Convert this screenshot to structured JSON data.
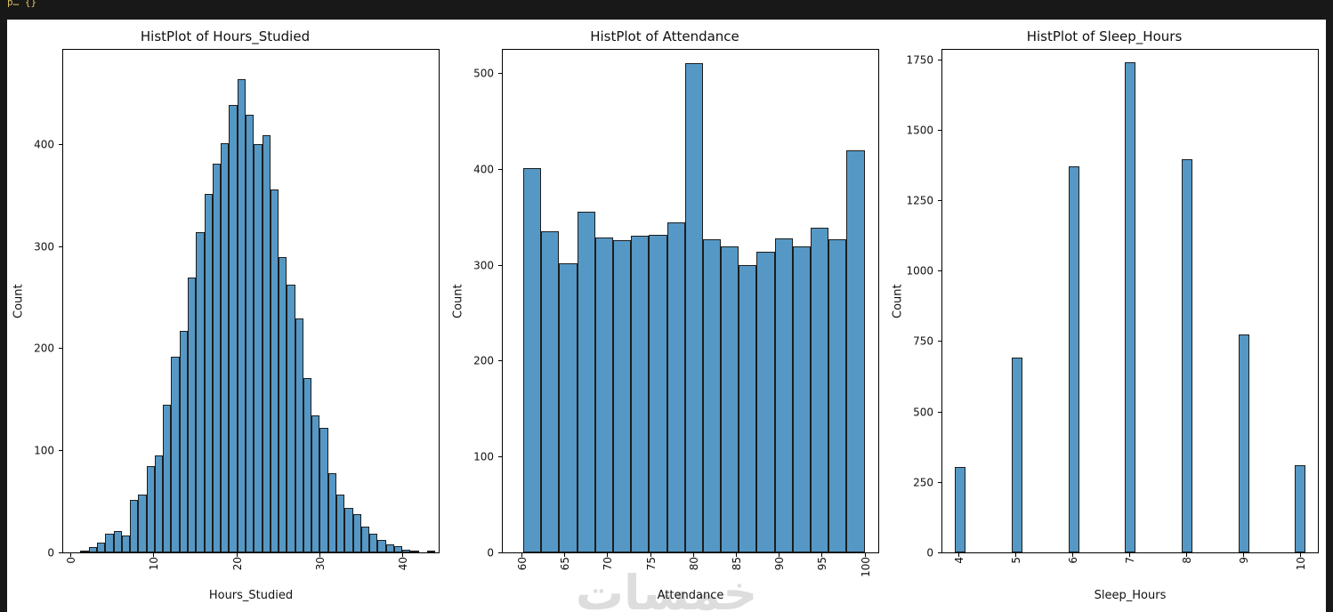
{
  "window": {
    "code_fragment": "p… {}"
  },
  "watermark": "خمسات",
  "colors": {
    "bar_fill": "#5598c5",
    "bar_edge": "#1d1d1d",
    "figure_bg": "#ffffff",
    "window_bg": "#181818",
    "code_color": "#d8c15e"
  },
  "chart_data": [
    {
      "type": "bar",
      "title": "HistPlot of Hours_Studied",
      "xlabel": "Hours_Studied",
      "ylabel": "Count",
      "bin_start": 1,
      "bin_width": 1,
      "values": [
        2,
        5,
        10,
        18,
        21,
        17,
        52,
        57,
        85,
        95,
        145,
        192,
        218,
        270,
        315,
        352,
        382,
        402,
        440,
        465,
        430,
        401,
        410,
        357,
        290,
        263,
        230,
        171,
        135,
        122,
        78,
        57,
        44,
        38,
        25,
        18,
        12,
        8,
        6,
        3,
        1,
        0,
        2
      ],
      "xlim": [
        -1.1,
        44.4
      ],
      "ylim": [
        0,
        494
      ],
      "xticks": [
        0,
        10,
        20,
        30,
        40
      ],
      "yticks": [
        0,
        100,
        200,
        300,
        400
      ],
      "legend": null,
      "grid": false
    },
    {
      "type": "bar",
      "title": "HistPlot of Attendance",
      "xlabel": "Attendance",
      "ylabel": "Count",
      "bin_start": 60,
      "bin_width": 2.105,
      "values": [
        402,
        336,
        303,
        357,
        330,
        327,
        331,
        332,
        345,
        512,
        328,
        320,
        301,
        315,
        329,
        320,
        340,
        328,
        421
      ],
      "xlim": [
        57.6,
        101.6
      ],
      "ylim": [
        0,
        526
      ],
      "xticks": [
        60,
        65,
        70,
        75,
        80,
        85,
        90,
        95,
        100
      ],
      "yticks": [
        0,
        100,
        200,
        300,
        400,
        500
      ],
      "legend": null,
      "grid": false
    },
    {
      "type": "bar",
      "title": "HistPlot of Sleep_Hours",
      "xlabel": "Sleep_Hours",
      "ylabel": "Count",
      "centers": [
        4,
        5,
        6,
        7,
        8,
        9,
        10
      ],
      "bar_half_width": 0.095,
      "values": [
        305,
        695,
        1375,
        1745,
        1400,
        775,
        310
      ],
      "xlim": [
        3.68,
        10.31
      ],
      "ylim": [
        0,
        1790
      ],
      "xticks": [
        4,
        5,
        6,
        7,
        8,
        9,
        10
      ],
      "yticks": [
        0,
        250,
        500,
        750,
        1000,
        1250,
        1500,
        1750
      ],
      "legend": null,
      "grid": false
    }
  ]
}
